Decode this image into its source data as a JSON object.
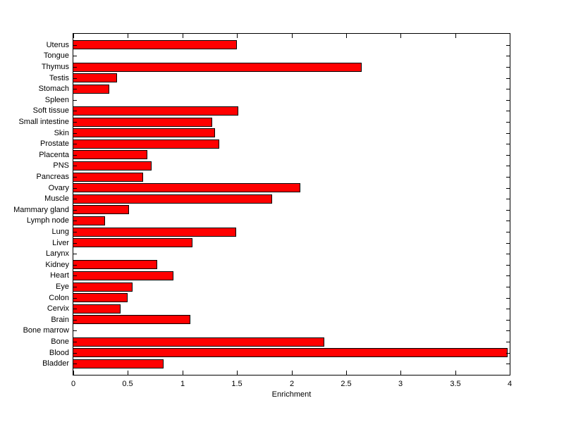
{
  "chart_data": {
    "type": "bar",
    "orientation": "horizontal",
    "title": "",
    "xlabel": "Enrichment",
    "ylabel": "",
    "xlim": [
      0,
      4
    ],
    "xticks": [
      0,
      0.5,
      1,
      1.5,
      2,
      2.5,
      3,
      3.5,
      4
    ],
    "xtick_labels": [
      "0",
      "0.5",
      "1",
      "1.5",
      "2",
      "2.5",
      "3",
      "3.5",
      "4"
    ],
    "categories": [
      "Uterus",
      "Tongue",
      "Thymus",
      "Testis",
      "Stomach",
      "Spleen",
      "Soft tissue",
      "Small intestine",
      "Skin",
      "Prostate",
      "Placenta",
      "PNS",
      "Pancreas",
      "Ovary",
      "Muscle",
      "Mammary gland",
      "Lymph node",
      "Lung",
      "Liver",
      "Larynx",
      "Kidney",
      "Heart",
      "Eye",
      "Colon",
      "Cervix",
      "Brain",
      "Bone marrow",
      "Bone",
      "Blood",
      "Bladder"
    ],
    "values": [
      1.5,
      0,
      2.64,
      0.4,
      0.33,
      0,
      1.51,
      1.27,
      1.3,
      1.34,
      0.68,
      0.72,
      0.64,
      2.08,
      1.82,
      0.51,
      0.29,
      1.49,
      1.09,
      0,
      0.77,
      0.92,
      0.54,
      0.5,
      0.43,
      1.07,
      0,
      2.3,
      3.98,
      0.83
    ],
    "bar_color": "#ff0000",
    "bar_edge_color": "#000000",
    "axis_color": "#000000",
    "background_color": "#ffffff",
    "grid": false,
    "legend": false,
    "categories_order": "top-to-bottom"
  }
}
